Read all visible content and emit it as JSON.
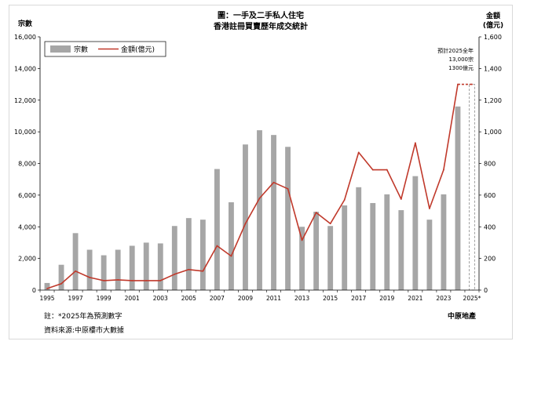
{
  "chart_data": {
    "type": "bar+line",
    "title_line1": "圖：一手及二手私人住宅",
    "title_line2": "香港註冊買賣歷年成交統計",
    "left_axis_title": "宗數",
    "right_axis_title_line1": "金額",
    "right_axis_title_line2": "(億元)",
    "left_ylim": [
      0,
      16000
    ],
    "right_ylim": [
      0,
      1600
    ],
    "left_ticks": [
      "0",
      "2,000",
      "4,000",
      "6,000",
      "8,000",
      "10,000",
      "12,000",
      "14,000",
      "16,000"
    ],
    "right_ticks": [
      "0",
      "200",
      "400",
      "600",
      "800",
      "1,000",
      "1,200",
      "1,400",
      "1,600"
    ],
    "x": [
      1995,
      1996,
      1997,
      1998,
      1999,
      2000,
      2001,
      2002,
      2003,
      2004,
      2005,
      2006,
      2007,
      2008,
      2009,
      2010,
      2011,
      2012,
      2013,
      2014,
      2015,
      2016,
      2017,
      2018,
      2019,
      2020,
      2021,
      2022,
      2023,
      2024,
      2025
    ],
    "x_tick_labels": [
      "1995",
      "1997",
      "1999",
      "2001",
      "2003",
      "2005",
      "2007",
      "2009",
      "2011",
      "2013",
      "2015",
      "2017",
      "2019",
      "2021",
      "2023",
      "2025*"
    ],
    "series": [
      {
        "name": "宗數",
        "type": "bar",
        "axis": "left",
        "color": "#a6a6a6",
        "values": [
          450,
          1600,
          3600,
          2550,
          2200,
          2550,
          2800,
          3000,
          2950,
          4050,
          4550,
          4450,
          7650,
          5550,
          9200,
          10100,
          9800,
          9050,
          4000,
          4950,
          4050,
          5350,
          6500,
          5500,
          6050,
          5050,
          7200,
          4450,
          6050,
          11600,
          13000
        ]
      },
      {
        "name": "金額(億元)",
        "type": "line",
        "axis": "right",
        "color": "#c0392b",
        "values": [
          10,
          40,
          120,
          80,
          60,
          65,
          60,
          60,
          60,
          100,
          130,
          120,
          280,
          215,
          420,
          580,
          680,
          640,
          315,
          490,
          420,
          570,
          870,
          760,
          760,
          575,
          930,
          515,
          760,
          1300,
          1300
        ]
      }
    ],
    "annotation_lines": [
      "預計2025全年",
      "13,000宗",
      "1300億元"
    ],
    "legend_position": "top-left",
    "notes": [
      "註：*2025年為預測數字",
      "資料來源:中原樓市大數據"
    ],
    "brand": "中原地產"
  }
}
